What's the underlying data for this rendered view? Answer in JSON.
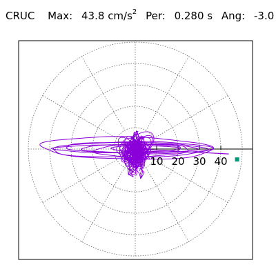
{
  "header": {
    "station": "CRUC",
    "max_label": "Max:",
    "max_value": "43.8",
    "max_unit": "cm/s",
    "max_unit_exp": "2",
    "per_label": "Per:",
    "per_value": "0.280 s",
    "ang_label": "Ang:",
    "ang_value": "-3.0"
  },
  "chart_data": {
    "type": "polar-orbit",
    "radial_ticks": [
      "10",
      "20",
      "30",
      "40"
    ],
    "radial_tick_values": [
      10,
      20,
      30,
      40
    ],
    "ring_values": [
      10,
      20,
      30,
      40,
      50
    ],
    "max_radius": 50,
    "spoke_angles_deg": [
      0,
      30,
      60,
      90,
      120,
      150,
      180,
      210,
      240,
      270,
      300,
      330
    ],
    "peak_direction_deg": -3.0,
    "peak_value": 43.8,
    "grid": true,
    "colors": {
      "trace": "#8a00d8",
      "grid": "#666666",
      "axis": "#000000",
      "marker": "#009977"
    }
  }
}
